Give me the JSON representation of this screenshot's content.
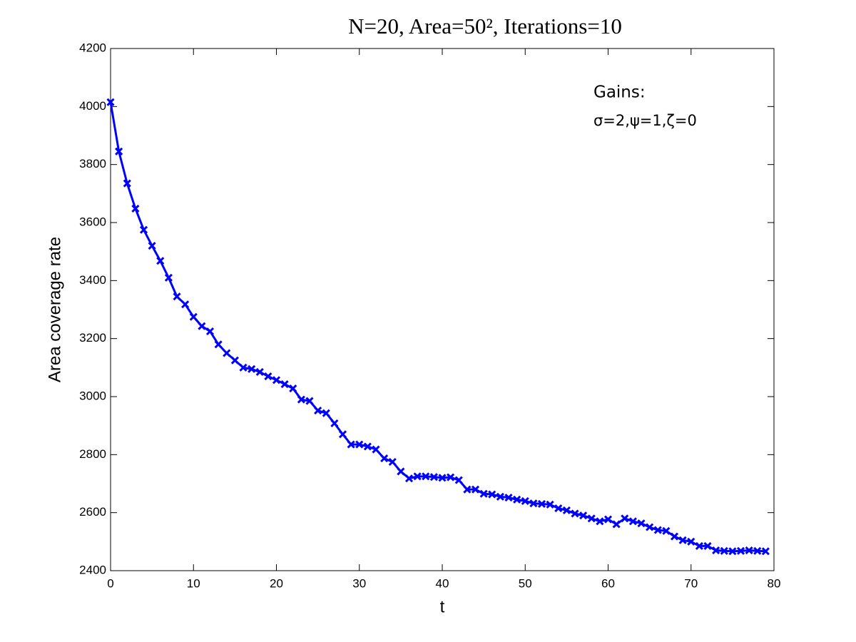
{
  "chart_data": {
    "type": "line",
    "title": "N=20, Area=50², Iterations=10",
    "xlabel": "t",
    "ylabel": "Area coverage rate",
    "annotations": [
      "Gains:",
      "σ=2,ψ=1,ζ=0"
    ],
    "x": [
      0,
      1,
      2,
      3,
      4,
      5,
      6,
      7,
      8,
      9,
      10,
      11,
      12,
      13,
      14,
      15,
      16,
      17,
      18,
      19,
      20,
      21,
      22,
      23,
      24,
      25,
      26,
      27,
      28,
      29,
      30,
      31,
      32,
      33,
      34,
      35,
      36,
      37,
      38,
      39,
      40,
      41,
      42,
      43,
      44,
      45,
      46,
      47,
      48,
      49,
      50,
      51,
      52,
      53,
      54,
      55,
      56,
      57,
      58,
      59,
      60,
      61,
      62,
      63,
      64,
      65,
      66,
      67,
      68,
      69,
      70,
      71,
      72,
      73,
      74,
      75,
      76,
      77,
      78,
      79
    ],
    "series": [
      {
        "color": "#0000ff",
        "marker": "x",
        "values": [
          4015,
          3845,
          3735,
          3648,
          3575,
          3520,
          3468,
          3410,
          3345,
          3318,
          3275,
          3243,
          3225,
          3180,
          3150,
          3125,
          3100,
          3095,
          3085,
          3070,
          3057,
          3043,
          3028,
          2990,
          2985,
          2952,
          2943,
          2908,
          2870,
          2835,
          2835,
          2828,
          2818,
          2787,
          2775,
          2742,
          2718,
          2725,
          2725,
          2723,
          2720,
          2722,
          2712,
          2680,
          2680,
          2665,
          2663,
          2655,
          2652,
          2645,
          2640,
          2632,
          2630,
          2628,
          2615,
          2608,
          2597,
          2590,
          2580,
          2570,
          2577,
          2560,
          2580,
          2570,
          2563,
          2550,
          2540,
          2537,
          2518,
          2505,
          2500,
          2485,
          2485,
          2470,
          2468,
          2467,
          2468,
          2470,
          2468,
          2467
        ]
      }
    ],
    "xlim": [
      0,
      80
    ],
    "xticks": [
      0,
      10,
      20,
      30,
      40,
      50,
      60,
      70,
      80
    ],
    "ylim": [
      2400,
      4200
    ],
    "yticks": [
      2400,
      2600,
      2800,
      3000,
      3200,
      3400,
      3600,
      3800,
      4000,
      4200
    ],
    "grid": false
  }
}
